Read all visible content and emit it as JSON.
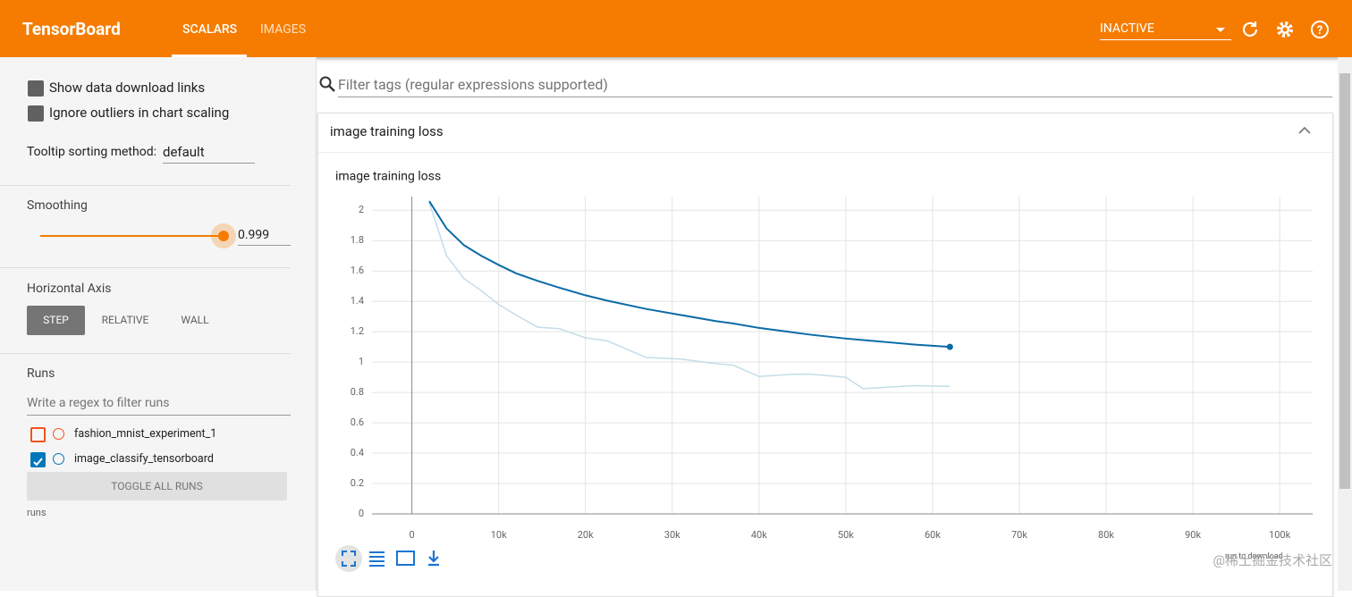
{
  "header": {
    "title": "TensorBoard",
    "tabs": [
      "SCALARS",
      "IMAGES"
    ],
    "status": "INACTIVE"
  },
  "sidebar": {
    "options": [
      "Show data download links",
      "Ignore outliers in chart scaling"
    ],
    "tooltip_label": "Tooltip sorting method:",
    "tooltip_value": "default",
    "smoothing_label": "Smoothing",
    "smoothing_value": 0.999,
    "axis_label": "Horizontal Axis",
    "axis_options": [
      "STEP",
      "RELATIVE",
      "WALL"
    ],
    "runs_label": "Runs",
    "runs_filter": "Write a regex to filter runs",
    "runs": [
      {
        "name": "fashion_mnist_experiment_1",
        "color": "#f4511e",
        "checked": false
      },
      {
        "name": "image_classify_tensorboard",
        "color": "#0077bb",
        "checked": true
      }
    ],
    "toggle": "TOGGLE ALL RUNS",
    "footer": "runs"
  },
  "main": {
    "filter": "Filter tags (regular expressions supported)",
    "card_title": "image training loss",
    "download": "run to download",
    "watermark": "@稀土掘金技术社区"
  },
  "chart_data": {
    "type": "line",
    "title": "image training loss",
    "x": [
      2000,
      4000,
      6000,
      8000,
      10000,
      12000,
      14500,
      17000,
      20000,
      22500,
      27000,
      31000,
      35000,
      37000,
      40000,
      44000,
      46000,
      50000,
      52000,
      55000,
      58000,
      62000
    ],
    "series": [
      {
        "name": "image_classify_tensorboard",
        "color": "#0b6ba6",
        "values": [
          2.06,
          1.88,
          1.77,
          1.7,
          1.64,
          1.585,
          1.535,
          1.49,
          1.44,
          1.405,
          1.35,
          1.31,
          1.27,
          1.255,
          1.225,
          1.195,
          1.18,
          1.155,
          1.145,
          1.13,
          1.115,
          1.1
        ]
      },
      {
        "color": "#c4dde9",
        "values": [
          2.05,
          1.7,
          1.55,
          1.47,
          1.38,
          1.31,
          1.23,
          1.22,
          1.16,
          1.14,
          1.03,
          1.02,
          0.99,
          0.98,
          0.905,
          0.92,
          0.92,
          0.9,
          0.825,
          0.835,
          0.845,
          0.84
        ]
      }
    ],
    "xlim": [
      -4600,
      103800
    ],
    "ylim": [
      0,
      2.09
    ],
    "xticks": [
      0,
      {
        "value": 10000,
        "label": "10k"
      },
      {
        "value": 20000,
        "label": "20k"
      },
      {
        "value": 30000,
        "label": "30k"
      },
      {
        "value": 40000,
        "label": "40k"
      },
      {
        "value": 50000,
        "label": "50k"
      },
      {
        "value": 60000,
        "label": "60k"
      },
      {
        "value": 70000,
        "label": "70k"
      },
      {
        "value": 80000,
        "label": "80k"
      },
      {
        "value": 90000,
        "label": "90k"
      },
      {
        "value": 100000,
        "label": "100k"
      }
    ],
    "yticks": [
      0,
      0.2,
      0.4,
      0.6,
      0.8,
      1,
      1.2,
      1.4,
      1.6,
      1.8,
      2
    ],
    "grid": true
  }
}
